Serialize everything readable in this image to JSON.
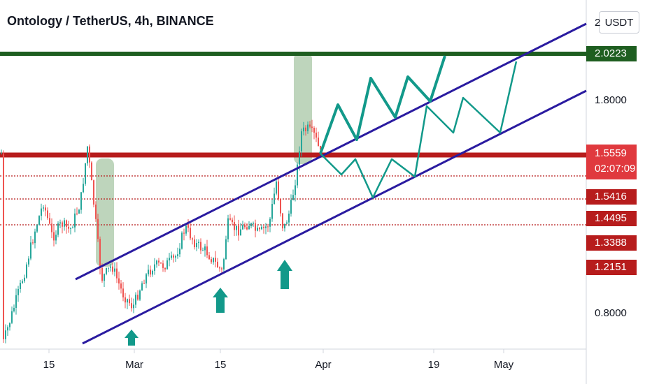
{
  "chart_data": {
    "type": "candlestick",
    "title": "Ontology / TetherUS, 4h, BINANCE",
    "currency": "USDT",
    "y_ticks": [
      "0.8000",
      "1.8000",
      "2"
    ],
    "y_range": [
      0.6,
      2.2
    ],
    "x_ticks": [
      "15",
      "Mar",
      "15",
      "Apr",
      "19",
      "May"
    ],
    "price_labels": [
      {
        "name": "resistance",
        "value": "2.0223",
        "color": "#1e5e20"
      },
      {
        "name": "last-price",
        "value": "1.5559",
        "sub": "02:07:09",
        "color": "#e0393e"
      },
      {
        "name": "level-1",
        "value": "1.5416",
        "color": "#b71c1c"
      },
      {
        "name": "level-2",
        "value": "1.4495",
        "color": "#b71c1c"
      },
      {
        "name": "level-3",
        "value": "1.3388",
        "color": "#b71c1c"
      },
      {
        "name": "level-4",
        "value": "1.2151",
        "color": "#b71c1c"
      }
    ],
    "colors": {
      "up": "#26a69a",
      "down": "#ef5350",
      "channel": "#2a1ba0",
      "projection": "#12998a",
      "support": "#b71c1c",
      "resistance": "#1e5e20"
    }
  }
}
